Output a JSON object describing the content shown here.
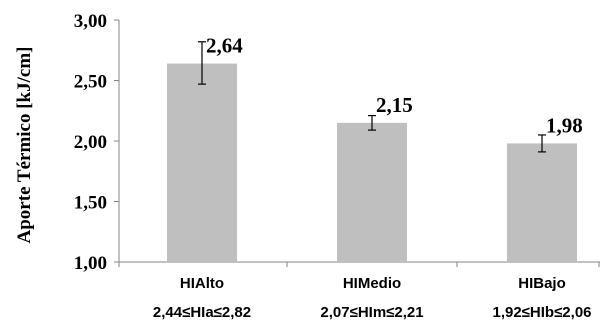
{
  "chart_data": {
    "type": "bar",
    "title": "",
    "xlabel": "",
    "ylabel": "Aporte Térmico  [kJ/cm]",
    "ylim": [
      1.0,
      3.0
    ],
    "yticks": [
      "1,00",
      "1,50",
      "2,00",
      "2,50",
      "3,00"
    ],
    "ytick_values": [
      1.0,
      1.5,
      2.0,
      2.5,
      3.0
    ],
    "grid": false,
    "bar_color": "#bfbfbf",
    "categories": [
      {
        "name": "HIAlto",
        "range": "2,44≤HIa≤2,82"
      },
      {
        "name": "HIMedio",
        "range": "2,07≤HIm≤2,21"
      },
      {
        "name": "HIBajo",
        "range": "1,92≤HIb≤2,06"
      }
    ],
    "values": [
      2.64,
      2.15,
      1.98
    ],
    "value_labels": [
      "2,64",
      "2,15",
      "1,98"
    ],
    "error_low": [
      2.47,
      2.09,
      1.91
    ],
    "error_high": [
      2.82,
      2.21,
      2.05
    ]
  }
}
